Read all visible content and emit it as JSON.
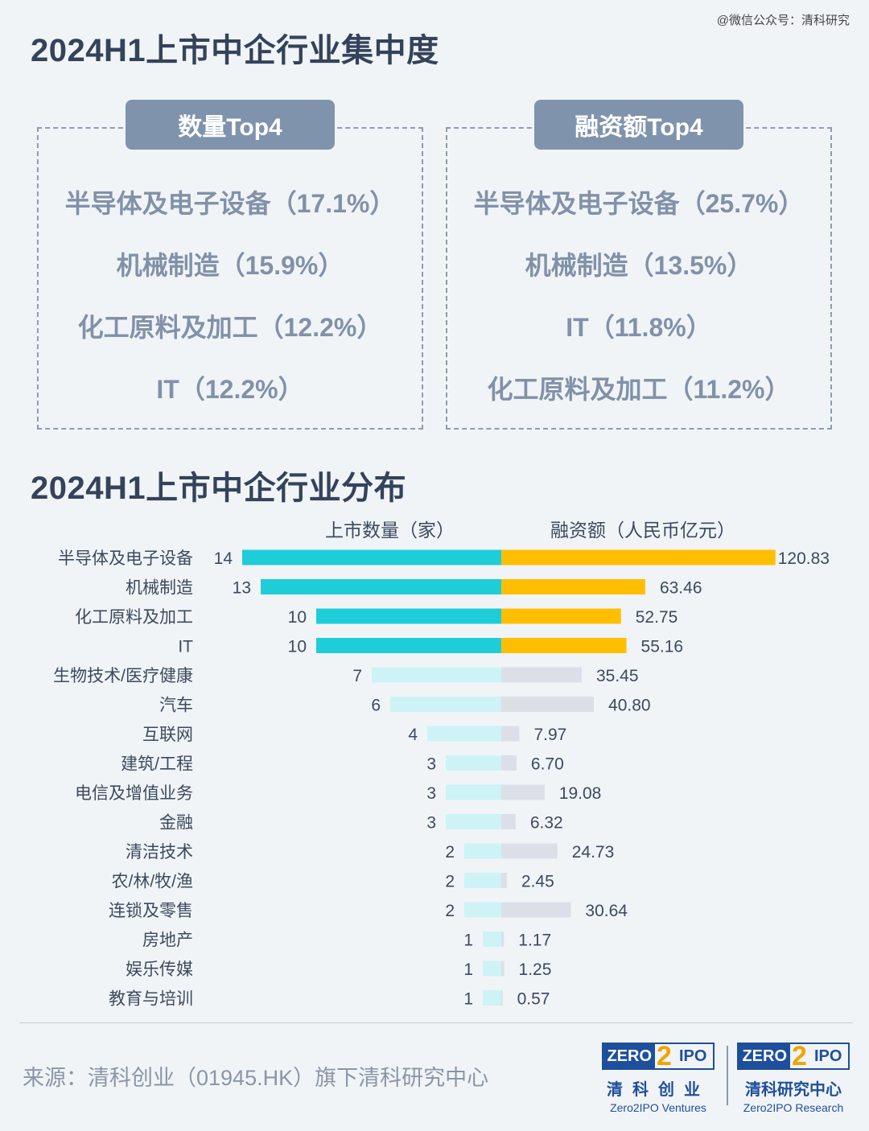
{
  "watermark": "@微信公众号：清科研究",
  "top_section": {
    "title": "2024H1上市中企行业集中度",
    "count_panel": {
      "header": "数量Top4",
      "items": [
        "半导体及电子设备（17.1%）",
        "机械制造（15.9%）",
        "化工原料及加工（12.2%）",
        "IT（12.2%）"
      ]
    },
    "amount_panel": {
      "header": "融资额Top4",
      "items": [
        "半导体及电子设备（25.7%）",
        "机械制造（13.5%）",
        "IT（11.8%）",
        "化工原料及加工（11.2%）"
      ]
    }
  },
  "bottom_section": {
    "title": "2024H1上市中企行业分布",
    "legend_left": "上市数量（家）",
    "legend_right": "融资额（人民币亿元）"
  },
  "colors": {
    "count_highlight": "#1fcdd8",
    "count_other": "#cdf3f6",
    "amount_highlight": "#ffbf00",
    "amount_other": "#dcdfe8"
  },
  "chart_data": {
    "type": "bar",
    "orientation": "horizontal-diverging",
    "categories": [
      "半导体及电子设备",
      "机械制造",
      "化工原料及加工",
      "IT",
      "生物技术/医疗健康",
      "汽车",
      "互联网",
      "建筑/工程",
      "电信及增值业务",
      "金融",
      "清洁技术",
      "农/林/牧/渔",
      "连锁及零售",
      "房地产",
      "娱乐传媒",
      "教育与培训"
    ],
    "series": [
      {
        "name": "上市数量（家）",
        "values": [
          14,
          13,
          10,
          10,
          7,
          6,
          4,
          3,
          3,
          3,
          2,
          2,
          2,
          1,
          1,
          1
        ]
      },
      {
        "name": "融资额（人民币亿元）",
        "values": [
          120.83,
          63.46,
          52.75,
          55.16,
          35.45,
          40.8,
          7.97,
          6.7,
          19.08,
          6.32,
          24.73,
          2.45,
          30.64,
          1.17,
          1.25,
          0.57
        ]
      }
    ],
    "value_labels": {
      "count": [
        "14",
        "13",
        "10",
        "10",
        "7",
        "6",
        "4",
        "3",
        "3",
        "3",
        "2",
        "2",
        "2",
        "1",
        "1",
        "1"
      ],
      "amount": [
        "120.83",
        "63.46",
        "52.75",
        "55.16",
        "35.45",
        "40.80",
        "7.97",
        "6.70",
        "19.08",
        "6.32",
        "24.73",
        "2.45",
        "30.64",
        "1.17",
        "1.25",
        "0.57"
      ]
    },
    "highlighted_top": 4
  },
  "footer": {
    "source": "来源：清科创业（01945.HK）旗下清科研究中心",
    "logo_ventures": {
      "left": "ZERO",
      "mid": "2",
      "right": "IPO",
      "cn": "清科创业",
      "en": "Zero2IPO Ventures"
    },
    "logo_research": {
      "left": "ZERO",
      "mid": "2",
      "right": "IPO",
      "cn": "清科研究中心",
      "en": "Zero2IPO Research"
    }
  }
}
